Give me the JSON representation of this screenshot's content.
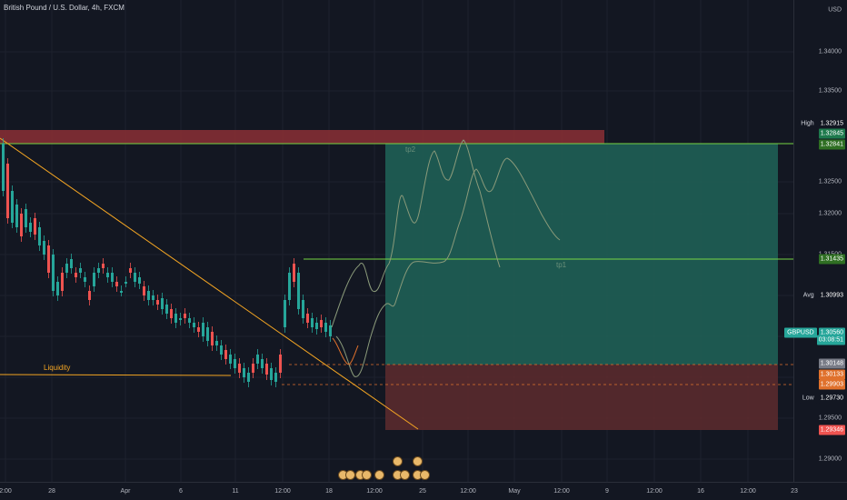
{
  "header": {
    "title": "British Pound / U.S. Dollar, 4h, FXCM"
  },
  "price_axis": {
    "currency": "USD",
    "ticks": [
      "1.34000",
      "1.33500",
      "1.32500",
      "1.32000",
      "1.31500",
      "1.29500",
      "1.29000"
    ],
    "tags": [
      {
        "name": "high-tag",
        "label": "High",
        "value": "1.32915",
        "label_bg": "#131722",
        "label_fg": "#d1d4dc",
        "value_bg": "#131722",
        "value_fg": "#ffffff"
      },
      {
        "name": "tp2-tag",
        "label": "",
        "value": "1.32845",
        "label_bg": "",
        "label_fg": "",
        "value_bg": "#1e7a4d",
        "value_fg": "#ffffff"
      },
      {
        "name": "tp2-line-tag",
        "label": "",
        "value": "1.32841",
        "label_bg": "",
        "label_fg": "",
        "value_bg": "#2f6f23",
        "value_fg": "#ffffff"
      },
      {
        "name": "tp1-tag",
        "label": "",
        "value": "1.31435",
        "label_bg": "",
        "label_fg": "",
        "value_bg": "#2f6f23",
        "value_fg": "#ffffff"
      },
      {
        "name": "avg-tag",
        "label": "Avg",
        "value": "1.30993",
        "label_bg": "#131722",
        "label_fg": "#d1d4dc",
        "value_bg": "#131722",
        "value_fg": "#ffffff"
      },
      {
        "name": "symbol-tag",
        "label": "GBPUSD",
        "value": "1.30560",
        "label_bg": "#26a69a",
        "label_fg": "#ffffff",
        "value_bg": "#26a69a",
        "value_fg": "#ffffff"
      },
      {
        "name": "countdown-tag",
        "label": "",
        "value": "03:08:51",
        "label_bg": "",
        "label_fg": "",
        "value_bg": "#26a69a",
        "value_fg": "#ffffff"
      },
      {
        "name": "entry-tag",
        "label": "",
        "value": "1.30148",
        "label_bg": "",
        "label_fg": "",
        "value_bg": "#787b86",
        "value_fg": "#ffffff"
      },
      {
        "name": "order-tag",
        "label": "",
        "value": "1.30133",
        "label_bg": "",
        "label_fg": "",
        "value_bg": "#e0712c",
        "value_fg": "#ffffff"
      },
      {
        "name": "liquidity-tag",
        "label": "",
        "value": "1.29903",
        "label_bg": "",
        "label_fg": "",
        "value_bg": "#e0712c",
        "value_fg": "#ffffff"
      },
      {
        "name": "low-tag",
        "label": "Low",
        "value": "1.29730",
        "label_bg": "#131722",
        "label_fg": "#d1d4dc",
        "value_bg": "#131722",
        "value_fg": "#ffffff"
      },
      {
        "name": "stop-tag",
        "label": "",
        "value": "1.29346",
        "label_bg": "",
        "label_fg": "",
        "value_bg": "#ef5350",
        "value_fg": "#ffffff"
      }
    ]
  },
  "time_axis": {
    "ticks": [
      "2:00",
      "28",
      "Apr",
      "6",
      "11",
      "12:00",
      "18",
      "12:00",
      "25",
      "12:00",
      "May",
      "12:00",
      "9",
      "12:00",
      "16",
      "12:00",
      "23"
    ]
  },
  "annotations": {
    "liquidity": "Liquidity",
    "tp1": "tp1",
    "tp2": "tp2"
  },
  "colors": {
    "up": "#26a69a",
    "down": "#ef5350",
    "trendline": "#f5a623",
    "target_line": "#76d443",
    "profit_zone": "#1f5f55",
    "loss_zone": "#5a2a2e",
    "resistance_zone": "#8b2f35"
  }
}
